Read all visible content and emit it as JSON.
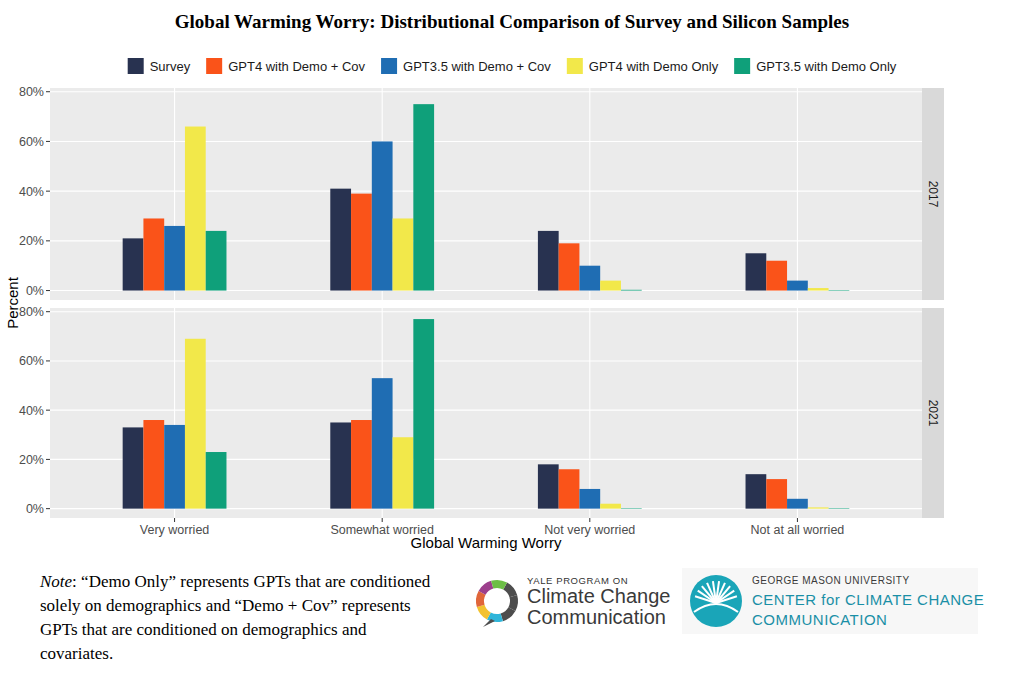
{
  "title": "Global Warming Worry: Distributional Comparison of Survey and Silicon Samples",
  "x_label": "Global Warming Worry",
  "y_label": "Percent",
  "note": {
    "label": "Note",
    "lines": [
      ": “Demo Only” represents GPTs that are conditioned",
      "solely on demographics and “Demo + Cov” represents",
      "GPTs that are conditioned on demographics and",
      "covariates."
    ]
  },
  "logos": [
    {
      "lines": [
        "YALE PROGRAM ON",
        "Climate Change",
        "Communication"
      ]
    },
    {
      "lines": [
        "GEORGE MASON UNIVERSITY",
        "CENTER for CLIMATE CHANGE",
        "COMMUNICATION"
      ]
    }
  ],
  "chart_data": [
    {
      "type": "bar",
      "subtitle": "2017",
      "legend": "top",
      "grid": true,
      "ylim": [
        -3.8,
        81.5
      ],
      "yticks": [
        {
          "value": 0,
          "label": "0%"
        },
        {
          "value": 20,
          "label": "20%"
        },
        {
          "value": 40,
          "label": "40%"
        },
        {
          "value": 60,
          "label": "60%"
        },
        {
          "value": 80,
          "label": "80%"
        }
      ],
      "series": [
        {
          "name": "Survey",
          "color": "#283250",
          "values": [
            21,
            41,
            24,
            15
          ]
        },
        {
          "name": "GPT4 with Demo + Cov",
          "color": "#FA5319",
          "values": [
            29,
            39,
            19,
            12
          ]
        },
        {
          "name": "GPT3.5 with Demo + Cov",
          "color": "#1F6DB3",
          "values": [
            26,
            60,
            10,
            4
          ]
        },
        {
          "name": "GPT4 with Demo Only",
          "color": "#F2E84A",
          "values": [
            66,
            29,
            4,
            1
          ]
        },
        {
          "name": "GPT3.5 with Demo Only",
          "color": "#0FA07A",
          "values": [
            24,
            75,
            0.3,
            0.2
          ]
        }
      ]
    },
    {
      "type": "bar",
      "subtitle": "2021",
      "grid": true,
      "categories": [
        "Very worried",
        "Somewhat worried",
        "Not very worried",
        "Not at all worried"
      ],
      "ylim": [
        -3.8,
        81.5
      ],
      "yticks": [
        {
          "value": 0,
          "label": "0%"
        },
        {
          "value": 20,
          "label": "20%"
        },
        {
          "value": 40,
          "label": "40%"
        },
        {
          "value": 60,
          "label": "60%"
        },
        {
          "value": 80,
          "label": "80%"
        }
      ],
      "series": [
        {
          "color": "#283250",
          "values": [
            33,
            35,
            18,
            14
          ]
        },
        {
          "color": "#FA5319",
          "values": [
            36,
            36,
            16,
            12
          ]
        },
        {
          "color": "#1F6DB3",
          "values": [
            34,
            53,
            8,
            4
          ]
        },
        {
          "color": "#F2E84A",
          "values": [
            69,
            29,
            2,
            0.5
          ]
        },
        {
          "color": "#0FA07A",
          "values": [
            23,
            77,
            0.2,
            0.2
          ]
        }
      ]
    }
  ]
}
